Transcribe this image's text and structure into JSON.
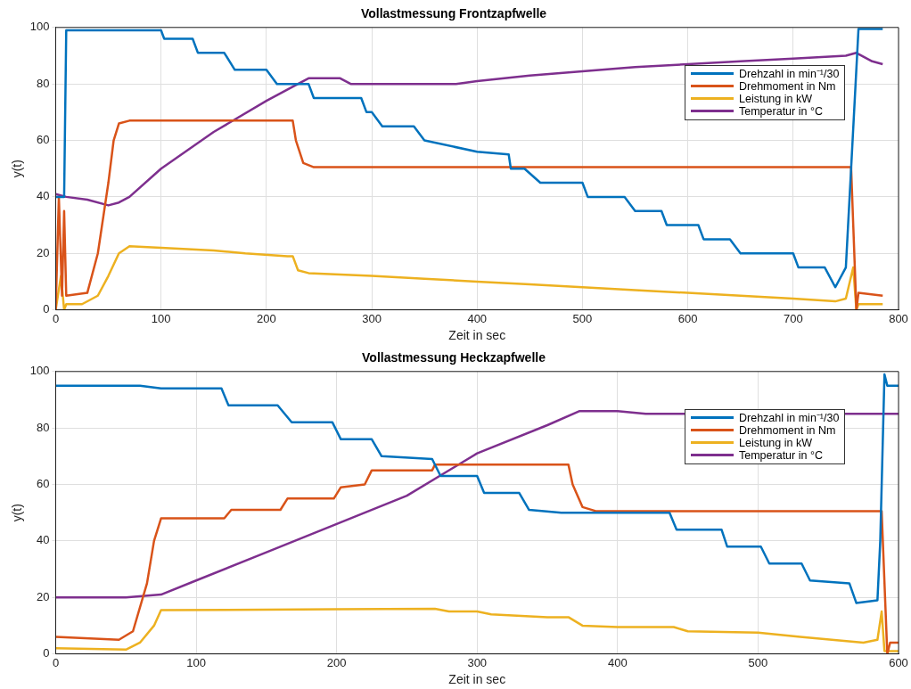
{
  "chart_data": [
    {
      "type": "line",
      "title": "Vollastmessung Frontzapfwelle",
      "xlabel": "Zeit in sec",
      "ylabel": "y(t)",
      "xlim": [
        0,
        800
      ],
      "xticks": [
        0,
        100,
        200,
        300,
        400,
        500,
        600,
        700,
        800
      ],
      "ylim": [
        0,
        100
      ],
      "yticks": [
        0,
        20,
        40,
        60,
        80,
        100
      ],
      "grid": true,
      "legend": "top right",
      "marker": "none",
      "line_style": "solid",
      "series": [
        {
          "name": "Drehzahl in min⁻¹/30",
          "color": "#0072bd",
          "x": [
            0,
            8,
            10,
            60,
            100,
            103,
            130,
            135,
            160,
            170,
            200,
            210,
            240,
            245,
            290,
            295,
            300,
            310,
            340,
            350,
            400,
            430,
            432,
            445,
            460,
            500,
            505,
            540,
            550,
            575,
            580,
            610,
            615,
            640,
            650,
            700,
            705,
            730,
            740,
            750,
            755,
            762,
            785
          ],
          "values": [
            40,
            40,
            99,
            99,
            99,
            96,
            96,
            91,
            91,
            85,
            85,
            80,
            80,
            75,
            75,
            70,
            70,
            65,
            65,
            60,
            56,
            55,
            50,
            50,
            45,
            45,
            40,
            40,
            35,
            35,
            30,
            30,
            25,
            25,
            20,
            20,
            15,
            15,
            8,
            15,
            50,
            99.5,
            99.5
          ]
        },
        {
          "name": "Drehmoment in Nm",
          "color": "#d95319",
          "x": [
            0,
            3,
            6,
            8,
            10,
            30,
            40,
            50,
            55,
            60,
            70,
            100,
            225,
            228,
            235,
            245,
            755,
            760,
            762,
            785
          ],
          "values": [
            0,
            40,
            5,
            35,
            5,
            6,
            20,
            45,
            60,
            66,
            67,
            67,
            67,
            60,
            52,
            50.5,
            50.5,
            0,
            6,
            5
          ]
        },
        {
          "name": "Leistung in kW",
          "color": "#edb120",
          "x": [
            0,
            5,
            8,
            10,
            25,
            40,
            50,
            60,
            70,
            100,
            150,
            180,
            220,
            225,
            230,
            240,
            300,
            350,
            400,
            450,
            500,
            550,
            600,
            650,
            700,
            740,
            750,
            757,
            760,
            762,
            785
          ],
          "values": [
            0,
            12,
            0,
            2,
            2,
            5,
            12,
            20,
            22.5,
            22,
            21,
            20,
            19,
            19,
            14,
            13,
            12,
            11,
            10,
            9,
            8,
            7,
            6,
            5,
            4,
            3,
            4,
            15,
            0,
            2,
            2
          ]
        },
        {
          "name": "Temperatur in °C",
          "color": "#7e2f8e",
          "x": [
            0,
            10,
            30,
            50,
            60,
            70,
            100,
            150,
            200,
            230,
            240,
            270,
            280,
            350,
            380,
            400,
            450,
            500,
            550,
            600,
            650,
            700,
            750,
            760,
            775,
            785
          ],
          "values": [
            41,
            40,
            39,
            37,
            38,
            40,
            50,
            63,
            74,
            80,
            82,
            82,
            80,
            80,
            80,
            81,
            83,
            84.5,
            86,
            87,
            88,
            89,
            90,
            91,
            88,
            87
          ]
        }
      ]
    },
    {
      "type": "line",
      "title": "Vollastmessung Heckzapfwelle",
      "xlabel": "Zeit in sec",
      "ylabel": "y(t)",
      "xlim": [
        0,
        600
      ],
      "xticks": [
        0,
        100,
        200,
        300,
        400,
        500,
        600
      ],
      "ylim": [
        0,
        100
      ],
      "yticks": [
        0,
        20,
        40,
        60,
        80,
        100
      ],
      "grid": true,
      "legend": "top right",
      "marker": "none",
      "line_style": "solid",
      "series": [
        {
          "name": "Drehzahl in min⁻¹/30",
          "color": "#0072bd",
          "x": [
            0,
            60,
            75,
            118,
            123,
            158,
            168,
            197,
            203,
            225,
            232,
            268,
            274,
            300,
            305,
            330,
            337,
            360,
            400,
            437,
            442,
            474,
            478,
            502,
            508,
            531,
            537,
            565,
            570,
            585,
            587,
            590,
            592,
            600
          ],
          "values": [
            95,
            95,
            94,
            94,
            88,
            88,
            82,
            82,
            76,
            76,
            70,
            69,
            63,
            63,
            57,
            57,
            51,
            50,
            50,
            50,
            44,
            44,
            38,
            38,
            32,
            32,
            26,
            25,
            18,
            19,
            40,
            99,
            95,
            95
          ]
        },
        {
          "name": "Drehmoment in Nm",
          "color": "#d95319",
          "x": [
            0,
            45,
            55,
            65,
            70,
            75,
            120,
            125,
            160,
            165,
            198,
            203,
            220,
            225,
            268,
            270,
            365,
            368,
            375,
            385,
            588,
            592,
            594,
            600
          ],
          "values": [
            6,
            5,
            8,
            25,
            40,
            48,
            48,
            51,
            51,
            55,
            55,
            59,
            60,
            65,
            65,
            67,
            67,
            60,
            52,
            50.5,
            50.5,
            0,
            4,
            4
          ]
        },
        {
          "name": "Leistung in kW",
          "color": "#edb120",
          "x": [
            0,
            50,
            60,
            70,
            75,
            200,
            270,
            280,
            300,
            310,
            350,
            365,
            375,
            400,
            440,
            450,
            500,
            530,
            575,
            585,
            588,
            590,
            592,
            600
          ],
          "values": [
            2,
            1.5,
            4,
            10,
            15.5,
            15.8,
            16,
            15,
            15,
            14,
            13,
            13,
            10,
            9.5,
            9.5,
            8,
            7.5,
            6,
            4,
            5,
            15,
            1,
            1,
            1
          ]
        },
        {
          "name": "Temperatur in °C",
          "color": "#7e2f8e",
          "x": [
            0,
            50,
            75,
            100,
            150,
            200,
            250,
            300,
            350,
            373,
            400,
            420,
            580,
            600
          ],
          "values": [
            20,
            20,
            21,
            26,
            36,
            46,
            56,
            71,
            81,
            86,
            86,
            85,
            85,
            85
          ]
        }
      ]
    }
  ]
}
